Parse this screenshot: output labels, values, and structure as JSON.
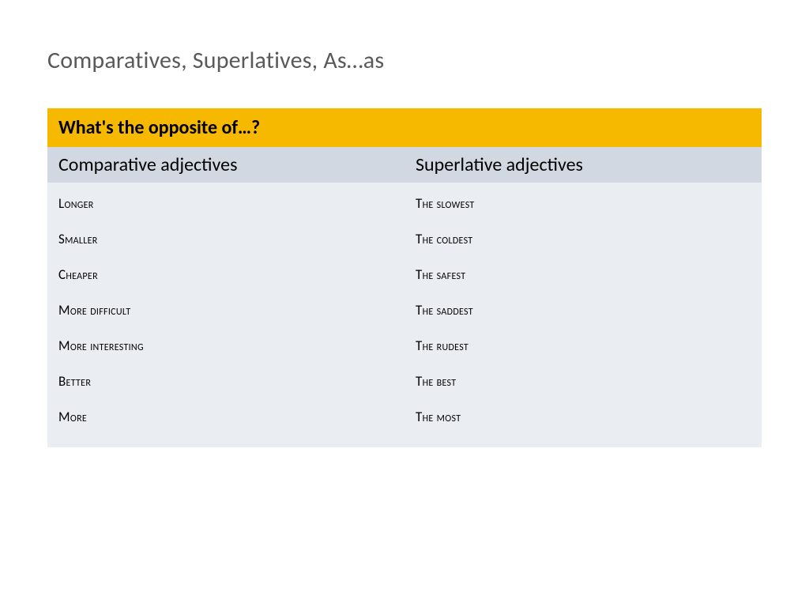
{
  "slide": {
    "title": "Comparatives, Superlatives, As…as"
  },
  "table": {
    "header": "What's the opposite of…?",
    "sub_left": "Comparative adjectives",
    "sub_right": "Superlative adjectives",
    "left_items": [
      "Longer",
      "Smaller",
      "Cheaper",
      "More difficult",
      "More interesting",
      "Better",
      "More"
    ],
    "right_items": [
      "The slowest",
      "The coldest",
      "The safest",
      "The saddest",
      "The rudest",
      "The best",
      "The most"
    ]
  },
  "style": {
    "accent_color": "#f6b900",
    "subheader_bg": "#d2d8e2",
    "list_bg": "#eaedf2",
    "title_color": "#595959",
    "text_color": "#000000",
    "title_fontsize": 30,
    "header_fontsize": 24,
    "item_fontsize": 17
  }
}
